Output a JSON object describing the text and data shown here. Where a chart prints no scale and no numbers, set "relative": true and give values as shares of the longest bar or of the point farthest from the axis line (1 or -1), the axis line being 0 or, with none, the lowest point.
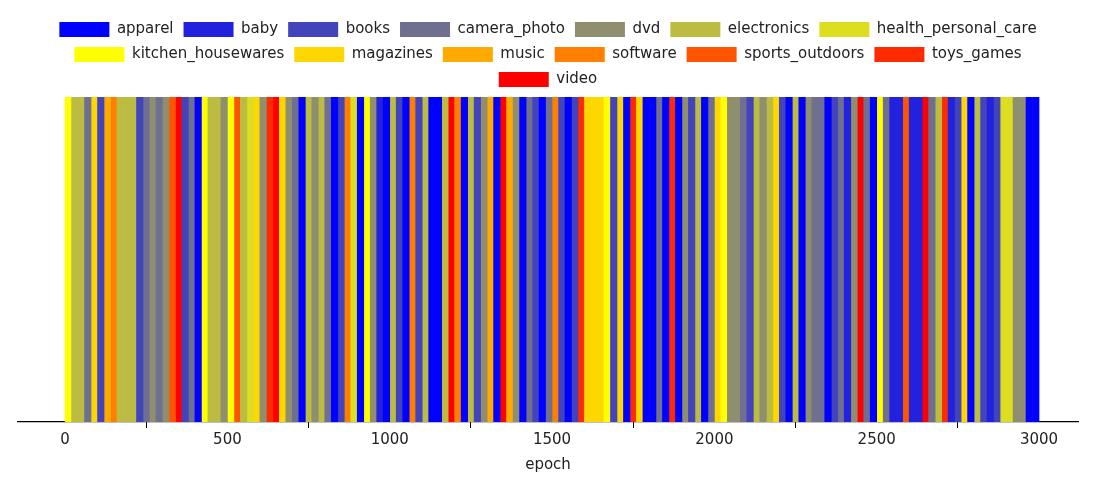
{
  "chart_data": {
    "type": "bar",
    "relative": true,
    "xlabel": "epoch",
    "xlim": [
      -145,
      3120
    ],
    "xticks": [
      0,
      500,
      1000,
      1500,
      2000,
      2500,
      3000
    ],
    "legend": "top",
    "series": [
      {
        "name": "apparel",
        "color": "#0000ff",
        "x": [
          410,
          730,
          830,
          910,
          990,
          1050,
          1130,
          1150,
          1230,
          1330,
          1410,
          1470,
          1550,
          1730,
          1790,
          1810,
          1850,
          1890,
          1970,
          2230,
          2270,
          2350,
          2490,
          2790,
          2970,
          2990
        ],
        "values": [
          1,
          1,
          1,
          1,
          1,
          1,
          1,
          1,
          1,
          1,
          1,
          1,
          1,
          1,
          1,
          1,
          1,
          1,
          1,
          1,
          1,
          1,
          1,
          1,
          1,
          1
        ]
      },
      {
        "name": "baby",
        "color": "#2121de",
        "x": [
          970,
          2410,
          2550,
          2570,
          2610,
          2630,
          2730,
          2850
        ],
        "values": [
          1,
          1,
          1,
          1,
          1,
          1,
          1,
          1
        ]
      },
      {
        "name": "books",
        "color": "#4343bc",
        "x": [
          110,
          230,
          370,
          850,
          1030,
          1090,
          1270,
          1450,
          1530,
          1570,
          1690,
          1930,
          2110,
          2210,
          2370,
          2750,
          2830,
          2870
        ],
        "values": [
          1,
          1,
          1,
          1,
          1,
          1,
          1,
          1,
          1,
          1,
          1,
          1,
          1,
          1,
          1,
          1,
          1,
          1
        ]
      },
      {
        "name": "camera_photo",
        "color": "#6f6f90",
        "x": [
          70,
          250,
          290,
          390,
          710,
          810,
          1430,
          1490,
          1830,
          1990,
          2090,
          2310,
          2330,
          2390,
          2470,
          2530,
          2670
        ],
        "values": [
          1,
          1,
          1,
          1,
          1,
          1,
          1,
          1,
          1,
          1,
          1,
          1,
          1,
          1,
          1,
          1,
          1
        ]
      },
      {
        "name": "dvd",
        "color": "#8f8f6f",
        "x": [
          270,
          310,
          490,
          610,
          690,
          770,
          950,
          1290,
          1390,
          1910,
          2050,
          2070,
          2150,
          2290,
          2430,
          2930,
          2950
        ],
        "values": [
          1,
          1,
          1,
          1,
          1,
          1,
          1,
          1,
          1,
          1,
          1,
          1,
          1,
          1,
          1,
          1,
          1
        ]
      },
      {
        "name": "electronics",
        "color": "#bcbc43",
        "x": [
          30,
          50,
          170,
          190,
          210,
          450,
          470,
          550,
          750,
          790,
          1010,
          1110,
          1170,
          1250,
          1950,
          2130,
          2170,
          2250,
          2690,
          2810
        ],
        "values": [
          1,
          1,
          1,
          1,
          1,
          1,
          1,
          1,
          1,
          1,
          1,
          1,
          1,
          1,
          1,
          1,
          1,
          1,
          1,
          1
        ]
      },
      {
        "name": "health_personal_care",
        "color": "#dede21",
        "x": [
          570,
          890,
          2890,
          2910
        ],
        "values": [
          1,
          1,
          1,
          1
        ]
      },
      {
        "name": "kitchen_housewares",
        "color": "#ffff00",
        "x": [
          10,
          430,
          510,
          930,
          1670,
          2030,
          2510
        ],
        "values": [
          1,
          1,
          1,
          1,
          1,
          1,
          1
        ]
      },
      {
        "name": "magazines",
        "color": "#ffd700",
        "x": [
          90,
          590,
          670,
          1610,
          1630,
          1650,
          1710,
          1770,
          2010,
          2190,
          2770
        ],
        "values": [
          1,
          1,
          1,
          1,
          1,
          1,
          1,
          1,
          1,
          1,
          1
        ]
      },
      {
        "name": "music",
        "color": "#ffaa00",
        "x": [
          130,
          1310,
          1370
        ],
        "values": [
          1,
          1,
          1
        ]
      },
      {
        "name": "software",
        "color": "#ff8000",
        "x": [
          150,
          870,
          1070,
          1210,
          1510
        ],
        "values": [
          1,
          1,
          1,
          1,
          1
        ]
      },
      {
        "name": "sports_outdoors",
        "color": "#ff5500",
        "x": [
          330,
          530,
          2590
        ],
        "values": [
          1,
          1,
          1
        ]
      },
      {
        "name": "toys_games",
        "color": "#ff2b00",
        "x": [
          630,
          1590,
          1750,
          1870,
          2710
        ],
        "values": [
          1,
          1,
          1,
          1,
          1
        ]
      },
      {
        "name": "video",
        "color": "#ff0000",
        "x": [
          350,
          650,
          1190,
          1350,
          2450,
          2650
        ],
        "values": [
          1,
          1,
          1,
          1,
          1,
          1
        ]
      }
    ]
  }
}
